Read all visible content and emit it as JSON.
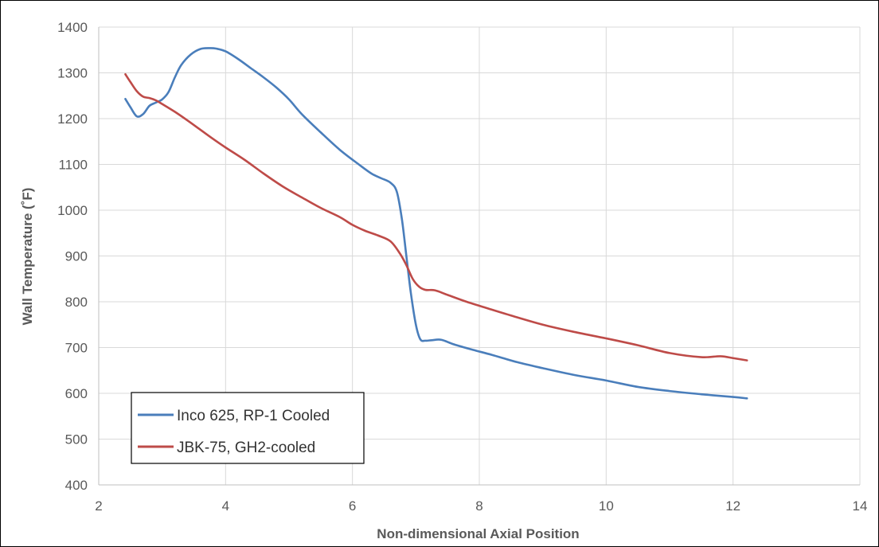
{
  "chart_data": {
    "type": "line",
    "title": "",
    "xlabel": "Non-dimensional Axial Position",
    "ylabel": "Wall Temperature (˚F)",
    "xlim": [
      2,
      14
    ],
    "ylim": [
      400,
      1400
    ],
    "x_ticks": [
      2,
      4,
      6,
      8,
      10,
      12,
      14
    ],
    "y_ticks": [
      400,
      500,
      600,
      700,
      800,
      900,
      1000,
      1100,
      1200,
      1300,
      1400
    ],
    "grid": true,
    "legend_placement": "bottom-left",
    "series": [
      {
        "name": "Inco 625, RP-1 Cooled",
        "color": "#4a7ebb",
        "x": [
          2.42,
          2.5,
          2.6,
          2.7,
          2.8,
          2.9,
          3.0,
          3.1,
          3.2,
          3.3,
          3.45,
          3.6,
          3.75,
          3.85,
          4.0,
          4.2,
          4.4,
          4.6,
          4.8,
          5.0,
          5.2,
          5.5,
          5.8,
          6.1,
          6.3,
          6.45,
          6.6,
          6.7,
          6.78,
          6.85,
          6.92,
          7.0,
          7.07,
          7.15,
          7.25,
          7.4,
          7.6,
          7.9,
          8.2,
          8.6,
          9.0,
          9.5,
          10.0,
          10.5,
          11.0,
          11.5,
          12.0,
          12.22
        ],
        "y": [
          1243,
          1225,
          1205,
          1210,
          1228,
          1235,
          1242,
          1258,
          1290,
          1317,
          1340,
          1352,
          1354,
          1353,
          1347,
          1330,
          1310,
          1290,
          1268,
          1242,
          1210,
          1170,
          1132,
          1100,
          1080,
          1070,
          1060,
          1040,
          980,
          900,
          820,
          750,
          718,
          715,
          716,
          717,
          707,
          695,
          684,
          668,
          655,
          640,
          628,
          614,
          605,
          598,
          592,
          589
        ]
      },
      {
        "name": "JBK-75, GH2-cooled",
        "color": "#be4b48",
        "x": [
          2.42,
          2.5,
          2.6,
          2.7,
          2.8,
          2.9,
          3.0,
          3.2,
          3.4,
          3.6,
          3.8,
          4.0,
          4.3,
          4.6,
          4.9,
          5.2,
          5.5,
          5.8,
          6.0,
          6.2,
          6.4,
          6.6,
          6.75,
          6.85,
          6.95,
          7.05,
          7.15,
          7.3,
          7.5,
          7.8,
          8.1,
          8.5,
          9.0,
          9.5,
          10.0,
          10.5,
          11.0,
          11.5,
          11.8,
          12.0,
          12.22
        ],
        "y": [
          1297,
          1280,
          1260,
          1248,
          1245,
          1240,
          1232,
          1215,
          1196,
          1176,
          1156,
          1137,
          1110,
          1080,
          1052,
          1028,
          1005,
          985,
          968,
          955,
          945,
          932,
          905,
          880,
          850,
          833,
          826,
          825,
          815,
          800,
          787,
          770,
          750,
          734,
          720,
          705,
          688,
          679,
          681,
          677,
          672
        ]
      }
    ]
  }
}
